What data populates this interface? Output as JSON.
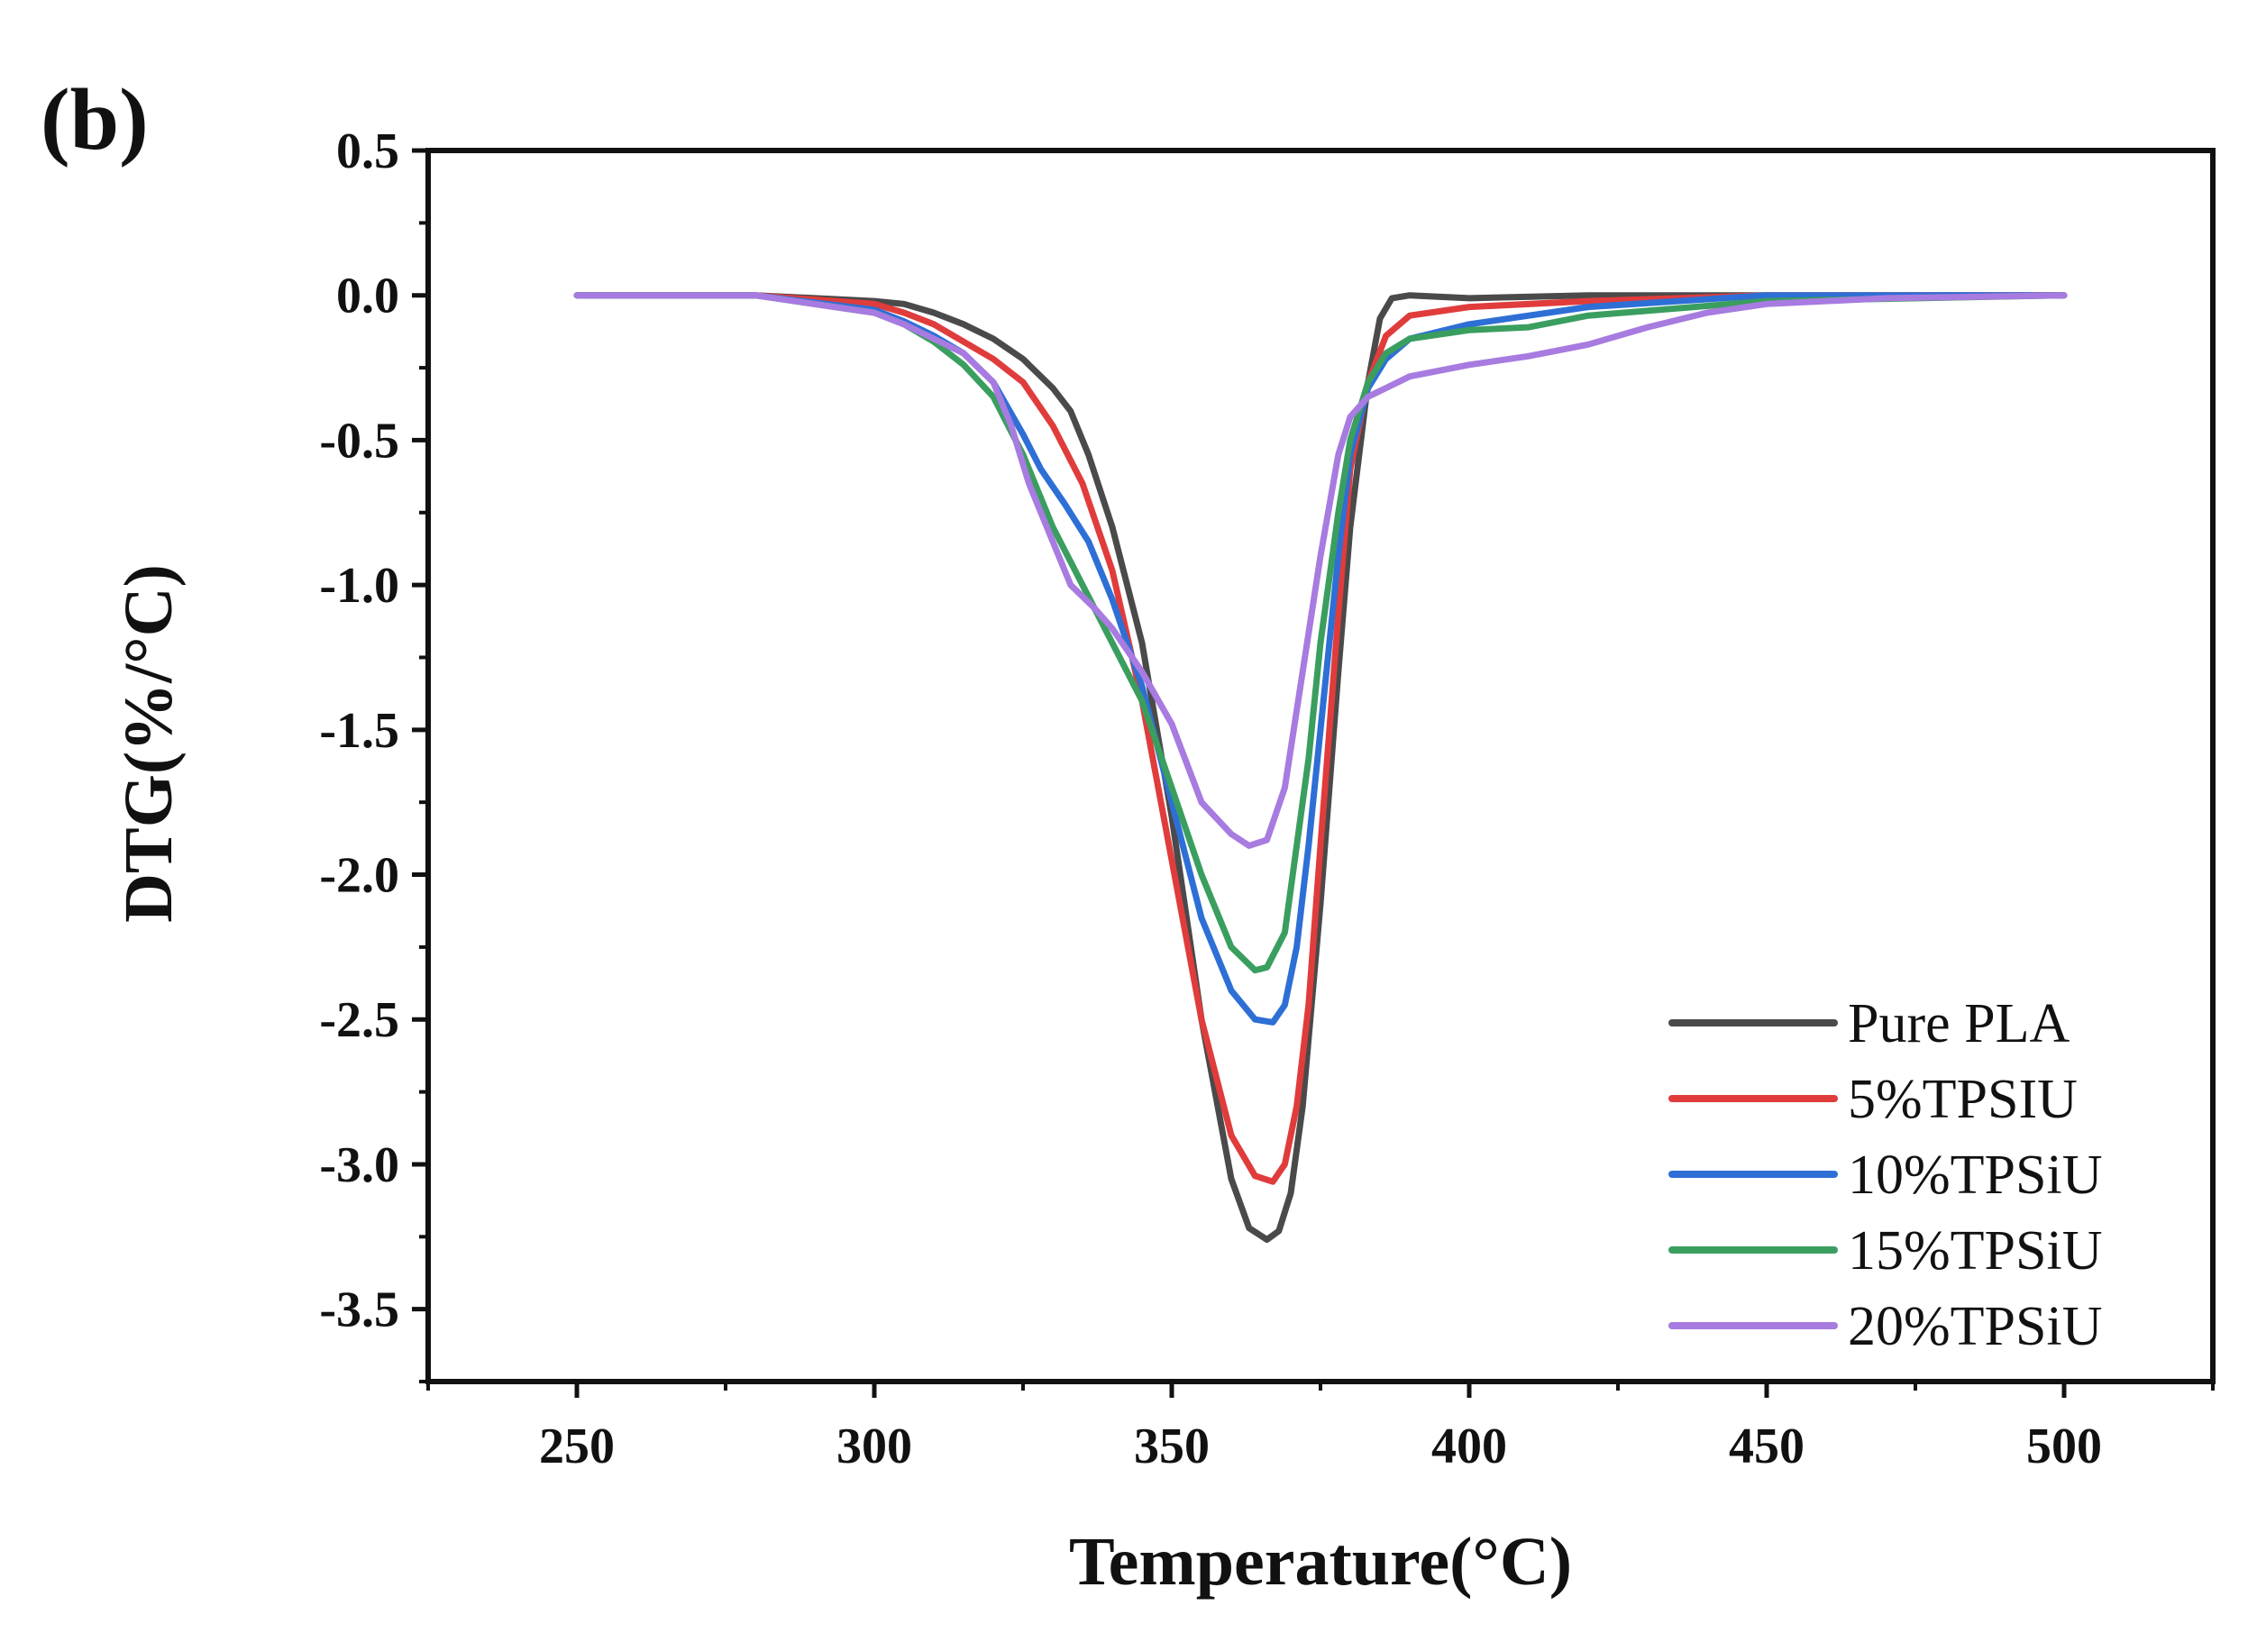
{
  "chart_data": {
    "type": "line",
    "panel_label": "(b)",
    "title": "",
    "xlabel": "Temperature(°C)",
    "ylabel": "DTG(%/°C)",
    "xlim": [
      225,
      525
    ],
    "ylim": [
      -3.75,
      0.5
    ],
    "x_ticks": [
      250,
      300,
      350,
      400,
      450,
      500
    ],
    "x_tick_labels": [
      "250",
      "300",
      "350",
      "400",
      "450",
      "500"
    ],
    "y_ticks": [
      0.5,
      0.0,
      -0.5,
      -1.0,
      -1.5,
      -2.0,
      -2.5,
      -3.0,
      -3.5
    ],
    "y_tick_labels": [
      "0.5",
      "0.0",
      "-0.5",
      "-1.0",
      "-1.5",
      "-2.0",
      "-2.5",
      "-3.0",
      "-3.5"
    ],
    "grid": false,
    "legend_position": "bottom-right",
    "series": [
      {
        "name": "Pure PLA",
        "color": "#4a4a4a",
        "x": [
          250,
          280,
          300,
          305,
          310,
          315,
          320,
          325,
          330,
          333,
          336,
          340,
          345,
          350,
          355,
          360,
          363,
          366,
          368,
          370,
          372,
          375,
          378,
          380,
          383,
          385,
          387,
          390,
          400,
          420,
          450,
          480,
          500
        ],
        "y": [
          0,
          0,
          -0.02,
          -0.03,
          -0.06,
          -0.1,
          -0.15,
          -0.22,
          -0.32,
          -0.4,
          -0.55,
          -0.8,
          -1.2,
          -1.8,
          -2.5,
          -3.05,
          -3.22,
          -3.26,
          -3.23,
          -3.1,
          -2.8,
          -2.1,
          -1.3,
          -0.8,
          -0.3,
          -0.08,
          -0.01,
          0,
          -0.01,
          0,
          0,
          0,
          0
        ]
      },
      {
        "name": "5%TPSIU",
        "color": "#e03c3c",
        "x": [
          250,
          280,
          300,
          305,
          310,
          315,
          320,
          325,
          330,
          335,
          340,
          345,
          350,
          355,
          360,
          364,
          367,
          369,
          371,
          373,
          375,
          378,
          380,
          383,
          386,
          390,
          400,
          420,
          450,
          500
        ],
        "y": [
          0,
          0,
          -0.03,
          -0.06,
          -0.1,
          -0.16,
          -0.22,
          -0.3,
          -0.45,
          -0.65,
          -0.95,
          -1.4,
          -1.95,
          -2.5,
          -2.9,
          -3.04,
          -3.06,
          -3.0,
          -2.8,
          -2.45,
          -1.9,
          -1.1,
          -0.6,
          -0.3,
          -0.14,
          -0.07,
          -0.04,
          -0.02,
          0,
          0
        ]
      },
      {
        "name": "10%TPSiU",
        "color": "#2e6fd6",
        "x": [
          250,
          280,
          300,
          305,
          310,
          315,
          320,
          325,
          328,
          332,
          336,
          340,
          345,
          350,
          355,
          360,
          364,
          367,
          369,
          371,
          373,
          375,
          378,
          380,
          383,
          386,
          390,
          400,
          420,
          450,
          500
        ],
        "y": [
          0,
          0,
          -0.05,
          -0.09,
          -0.14,
          -0.2,
          -0.3,
          -0.48,
          -0.6,
          -0.72,
          -0.85,
          -1.05,
          -1.35,
          -1.75,
          -2.15,
          -2.4,
          -2.5,
          -2.51,
          -2.45,
          -2.25,
          -1.9,
          -1.5,
          -0.9,
          -0.55,
          -0.32,
          -0.22,
          -0.15,
          -0.1,
          -0.04,
          0,
          0
        ]
      },
      {
        "name": "15%TPSiU",
        "color": "#3a9e5f",
        "x": [
          250,
          280,
          300,
          305,
          310,
          315,
          320,
          325,
          330,
          335,
          340,
          345,
          350,
          355,
          360,
          364,
          366,
          369,
          371,
          373,
          375,
          378,
          380,
          383,
          386,
          390,
          400,
          410,
          420,
          450,
          500
        ],
        "y": [
          0,
          0,
          -0.06,
          -0.1,
          -0.16,
          -0.24,
          -0.35,
          -0.55,
          -0.8,
          -1.0,
          -1.2,
          -1.4,
          -1.7,
          -2.0,
          -2.25,
          -2.33,
          -2.32,
          -2.2,
          -1.9,
          -1.6,
          -1.2,
          -0.75,
          -0.5,
          -0.3,
          -0.2,
          -0.15,
          -0.12,
          -0.11,
          -0.07,
          -0.02,
          0
        ]
      },
      {
        "name": "20%TPSiU",
        "color": "#a77be0",
        "x": [
          250,
          280,
          300,
          305,
          310,
          315,
          320,
          323,
          326,
          330,
          333,
          337,
          340,
          345,
          350,
          355,
          360,
          363,
          366,
          369,
          372,
          375,
          378,
          380,
          383,
          386,
          390,
          400,
          410,
          420,
          430,
          440,
          450,
          470,
          500
        ],
        "y": [
          0,
          0,
          -0.06,
          -0.1,
          -0.15,
          -0.2,
          -0.3,
          -0.45,
          -0.65,
          -0.85,
          -1.0,
          -1.08,
          -1.15,
          -1.3,
          -1.48,
          -1.75,
          -1.86,
          -1.9,
          -1.88,
          -1.7,
          -1.3,
          -0.9,
          -0.55,
          -0.42,
          -0.35,
          -0.32,
          -0.28,
          -0.24,
          -0.21,
          -0.17,
          -0.11,
          -0.06,
          -0.03,
          -0.01,
          0
        ]
      }
    ]
  }
}
